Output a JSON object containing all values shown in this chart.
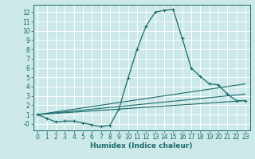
{
  "xlabel": "Humidex (Indice chaleur)",
  "bg_color": "#cce8e8",
  "grid_color": "#ffffff",
  "line_color": "#1a6b6b",
  "xlim": [
    -0.5,
    23.5
  ],
  "ylim": [
    -0.7,
    12.8
  ],
  "xticks": [
    0,
    1,
    2,
    3,
    4,
    5,
    6,
    7,
    8,
    9,
    10,
    11,
    12,
    13,
    14,
    15,
    16,
    17,
    18,
    19,
    20,
    21,
    22,
    23
  ],
  "yticks": [
    0,
    1,
    2,
    3,
    4,
    5,
    6,
    7,
    8,
    9,
    10,
    11,
    12
  ],
  "ytick_labels": [
    "-0",
    "1",
    "2",
    "3",
    "4",
    "5",
    "6",
    "7",
    "8",
    "9",
    "10",
    "11",
    "12"
  ],
  "series": [
    {
      "x": [
        0,
        1,
        2,
        3,
        4,
        5,
        6,
        7,
        8,
        9,
        10,
        11,
        12,
        13,
        14,
        15,
        16,
        17,
        18,
        19,
        20,
        21,
        22,
        23
      ],
      "y": [
        1.0,
        0.6,
        0.2,
        0.3,
        0.3,
        0.1,
        -0.1,
        -0.3,
        -0.15,
        1.6,
        4.9,
        8.0,
        10.5,
        12.0,
        12.2,
        12.3,
        9.2,
        6.0,
        5.1,
        4.3,
        4.2,
        3.2,
        2.5,
        2.5
      ]
    },
    {
      "x": [
        0,
        23
      ],
      "y": [
        1.0,
        2.5
      ]
    },
    {
      "x": [
        0,
        23
      ],
      "y": [
        1.0,
        4.3
      ]
    },
    {
      "x": [
        0,
        23
      ],
      "y": [
        1.0,
        3.2
      ]
    }
  ]
}
